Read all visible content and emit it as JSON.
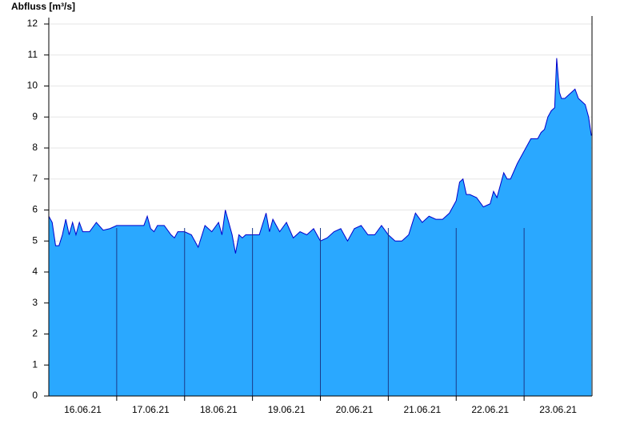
{
  "chart_data": {
    "type": "area",
    "ylabel": "Abfluss [m³/s]",
    "x": [
      0,
      0.05,
      0.1,
      0.15,
      0.2,
      0.25,
      0.3,
      0.35,
      0.4,
      0.45,
      0.5,
      0.6,
      0.7,
      0.8,
      0.9,
      1.0,
      1.1,
      1.2,
      1.3,
      1.4,
      1.45,
      1.5,
      1.55,
      1.6,
      1.7,
      1.8,
      1.85,
      1.9,
      2.0,
      2.1,
      2.2,
      2.3,
      2.4,
      2.5,
      2.55,
      2.6,
      2.7,
      2.75,
      2.8,
      2.85,
      2.9,
      3.0,
      3.1,
      3.2,
      3.25,
      3.3,
      3.4,
      3.5,
      3.6,
      3.7,
      3.8,
      3.9,
      4.0,
      4.1,
      4.2,
      4.3,
      4.4,
      4.5,
      4.6,
      4.7,
      4.8,
      4.9,
      5.0,
      5.1,
      5.2,
      5.3,
      5.4,
      5.5,
      5.6,
      5.7,
      5.8,
      5.9,
      6.0,
      6.05,
      6.1,
      6.15,
      6.2,
      6.3,
      6.4,
      6.5,
      6.55,
      6.6,
      6.7,
      6.75,
      6.8,
      6.9,
      7.0,
      7.1,
      7.2,
      7.25,
      7.3,
      7.35,
      7.4,
      7.45,
      7.48,
      7.52,
      7.55,
      7.6,
      7.7,
      7.75,
      7.8,
      7.85,
      7.9,
      7.95,
      7.99
    ],
    "values": [
      5.8,
      5.6,
      4.85,
      4.85,
      5.2,
      5.7,
      5.2,
      5.6,
      5.2,
      5.6,
      5.3,
      5.3,
      5.6,
      5.35,
      5.4,
      5.5,
      5.5,
      5.5,
      5.5,
      5.5,
      5.8,
      5.4,
      5.3,
      5.5,
      5.5,
      5.2,
      5.1,
      5.3,
      5.3,
      5.2,
      4.8,
      5.5,
      5.3,
      5.6,
      5.2,
      6.0,
      5.2,
      4.6,
      5.2,
      5.1,
      5.2,
      5.2,
      5.2,
      5.9,
      5.3,
      5.7,
      5.3,
      5.6,
      5.1,
      5.3,
      5.2,
      5.4,
      5.0,
      5.1,
      5.3,
      5.4,
      5.0,
      5.4,
      5.5,
      5.2,
      5.2,
      5.5,
      5.2,
      5.0,
      5.0,
      5.2,
      5.9,
      5.6,
      5.8,
      5.7,
      5.7,
      5.9,
      6.3,
      6.9,
      7.0,
      6.5,
      6.5,
      6.4,
      6.1,
      6.2,
      6.6,
      6.4,
      7.2,
      7.0,
      7.0,
      7.5,
      7.9,
      8.3,
      8.3,
      8.5,
      8.6,
      9.0,
      9.2,
      9.3,
      10.9,
      9.8,
      9.6,
      9.6,
      9.8,
      9.9,
      9.6,
      9.5,
      9.4,
      9.0,
      8.4
    ],
    "color": "#2aa8ff",
    "line_color": "#0000cc",
    "xlim": [
      0,
      8
    ],
    "xticks": [
      {
        "value": 0.5,
        "label": "16.06.21"
      },
      {
        "value": 1.5,
        "label": "17.06.21"
      },
      {
        "value": 2.5,
        "label": "18.06.21"
      },
      {
        "value": 3.5,
        "label": "19.06.21"
      },
      {
        "value": 4.5,
        "label": "20.06.21"
      },
      {
        "value": 5.5,
        "label": "21.06.21"
      },
      {
        "value": 6.5,
        "label": "22.06.21"
      },
      {
        "value": 7.5,
        "label": "23.06.21"
      }
    ],
    "xminorticks": [
      1,
      2,
      3,
      4,
      5,
      6,
      7
    ],
    "ylim": [
      0,
      12
    ],
    "yticks": [
      0,
      1,
      2,
      3,
      4,
      5,
      6,
      7,
      8,
      9,
      10,
      11,
      12
    ],
    "grid": true
  }
}
